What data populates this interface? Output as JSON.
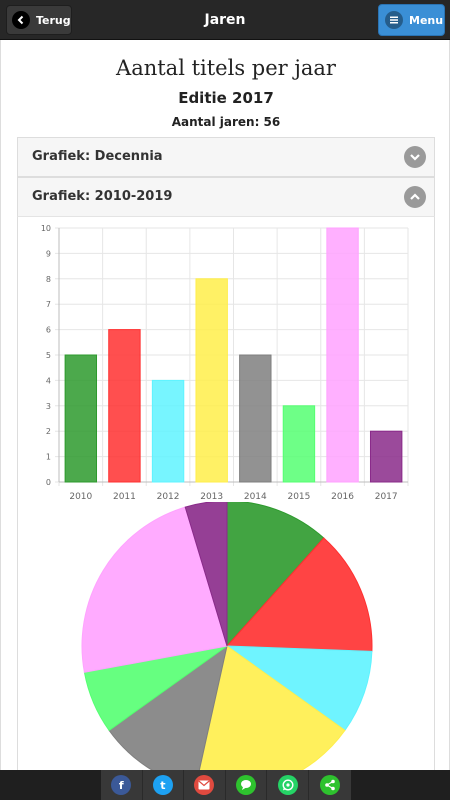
{
  "header": {
    "back_label": "Terug",
    "title": "Jaren",
    "menu_label": "Menu"
  },
  "main": {
    "title": "Aantal titels per jaar",
    "subtitle": "Editie 2017",
    "count_text": "Aantal jaren: 56"
  },
  "sections": [
    {
      "label": "Grafiek: Decennia",
      "expanded": false
    },
    {
      "label": "Grafiek: 2010-2019",
      "expanded": true
    }
  ],
  "chart_data": [
    {
      "type": "bar",
      "categories": [
        "2010",
        "2011",
        "2012",
        "2013",
        "2014",
        "2015",
        "2016",
        "2017"
      ],
      "values": [
        5,
        6,
        4,
        8,
        5,
        3,
        10,
        2
      ],
      "colors": [
        "#2d9a2d",
        "#ff3030",
        "#5ff3ff",
        "#ffee4a",
        "#7f7f7f",
        "#55ff72",
        "#ffa2ff",
        "#8a2a8a"
      ],
      "ylim": [
        0,
        10
      ],
      "yticks": [
        "0",
        "1",
        "2",
        "3",
        "4",
        "5",
        "6",
        "7",
        "8",
        "9",
        "10"
      ],
      "grid": true
    },
    {
      "type": "pie",
      "categories": [
        "2010",
        "2011",
        "2012",
        "2013",
        "2014",
        "2015",
        "2016",
        "2017"
      ],
      "values": [
        5,
        6,
        4,
        8,
        5,
        3,
        10,
        2
      ],
      "colors": [
        "#2d9a2d",
        "#ff3030",
        "#5ff3ff",
        "#ffee4a",
        "#7f7f7f",
        "#55ff72",
        "#ffa2ff",
        "#8a2a8a"
      ]
    }
  ],
  "footer": {
    "share_buttons": [
      {
        "icon": "facebook-icon",
        "text": "f",
        "color": "#3b5998"
      },
      {
        "icon": "twitter-icon",
        "text": "t",
        "color": "#1da1f2"
      },
      {
        "icon": "email-icon",
        "text": "",
        "color": "#e04a3f"
      },
      {
        "icon": "sms-icon",
        "text": "",
        "color": "#2ec22e"
      },
      {
        "icon": "whatsapp-icon",
        "text": "",
        "color": "#25d366"
      },
      {
        "icon": "share-icon",
        "text": "",
        "color": "#2ec22e"
      }
    ]
  }
}
